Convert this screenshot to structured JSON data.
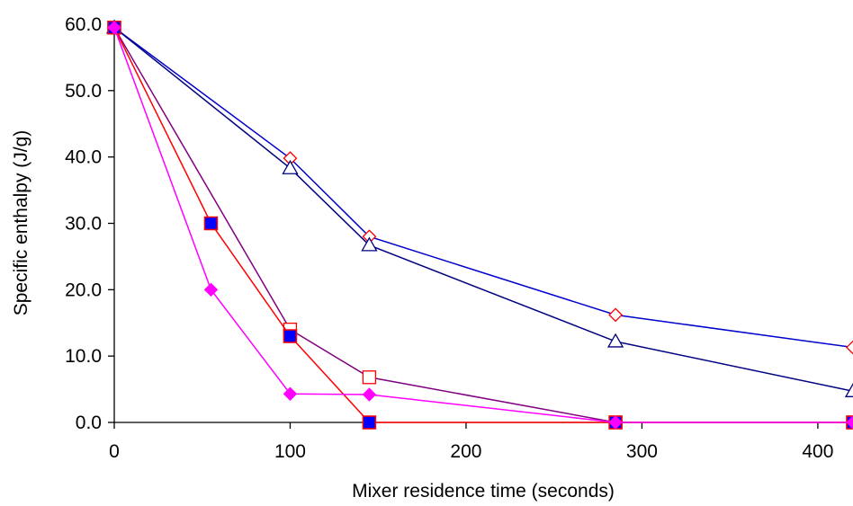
{
  "chart_data": {
    "type": "line",
    "title": "",
    "xlabel": "Mixer residence time (seconds)",
    "ylabel": "Specific enthalpy (J/g)",
    "xlim": [
      0,
      420
    ],
    "ylim": [
      0,
      60
    ],
    "x_ticks": [
      0,
      100,
      200,
      300,
      400
    ],
    "x_tick_labels": [
      "0",
      "100",
      "200",
      "300",
      "400"
    ],
    "y_ticks": [
      0,
      10,
      20,
      30,
      40,
      50,
      60
    ],
    "y_tick_labels": [
      "0.0",
      "10.0",
      "20.0",
      "30.0",
      "40.0",
      "50.0",
      "60.0"
    ],
    "grid": false,
    "legend": "none",
    "series": [
      {
        "line_color": "#0000cc",
        "marker": "diamond-open",
        "marker_color": "#ff0000",
        "points": [
          [
            0,
            59.5
          ],
          [
            100,
            39.8
          ],
          [
            145,
            28.0
          ],
          [
            285,
            16.2
          ],
          [
            420,
            11.3
          ]
        ]
      },
      {
        "line_color": "#000080",
        "marker": "triangle-open",
        "marker_color": "#000080",
        "points": [
          [
            0,
            59.5
          ],
          [
            100,
            38.3
          ],
          [
            145,
            26.7
          ],
          [
            285,
            12.2
          ],
          [
            420,
            4.7
          ]
        ]
      },
      {
        "line_color": "#800080",
        "marker": "square-open",
        "marker_color": "#ff0000",
        "points": [
          [
            0,
            59.5
          ],
          [
            100,
            14.0
          ],
          [
            145,
            6.8
          ],
          [
            285,
            0.0
          ],
          [
            420,
            0.0
          ]
        ]
      },
      {
        "line_color": "#ff0000",
        "marker": "square-filled",
        "marker_color": "#0000ff",
        "marker_stroke": "#ff0000",
        "points": [
          [
            0,
            59.5
          ],
          [
            55,
            30.0
          ],
          [
            100,
            13.0
          ],
          [
            145,
            0.0
          ],
          [
            285,
            0.0
          ],
          [
            420,
            0.0
          ]
        ]
      },
      {
        "line_color": "#ff00ff",
        "marker": "diamond-filled",
        "marker_color": "#ff00ff",
        "points": [
          [
            0,
            59.5
          ],
          [
            55,
            20.0
          ],
          [
            100,
            4.3
          ],
          [
            145,
            4.2
          ],
          [
            285,
            0.0
          ],
          [
            420,
            0.0
          ]
        ]
      }
    ]
  }
}
